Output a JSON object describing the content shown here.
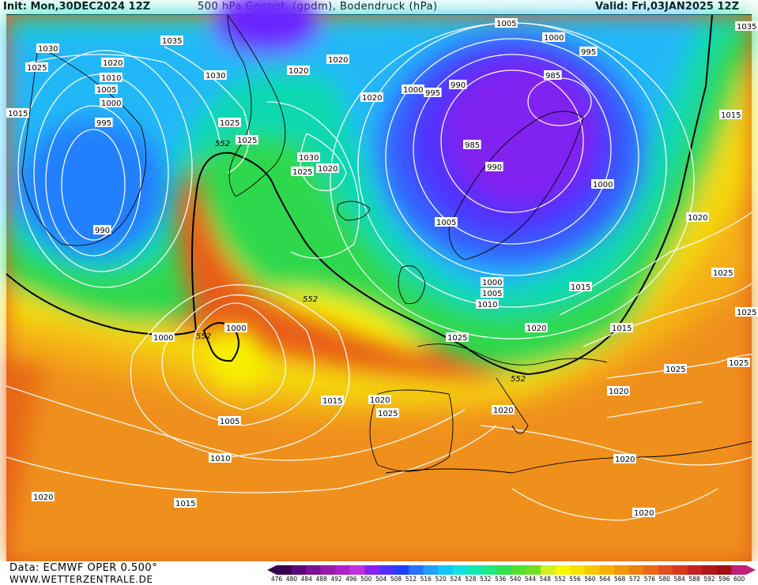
{
  "header": {
    "init": "Init: Mon,30DEC2024 12Z",
    "title": "500 hPa Geopot. (gpdm), Bodendruck (hPa)",
    "valid": "Valid: Fri,03JAN2025 12Z"
  },
  "footer": {
    "source": "Data: ECMWF OPER 0.500°",
    "site": "WWW.WETTERZENTRALE.DE"
  },
  "scale": {
    "values": [
      "476",
      "480",
      "484",
      "488",
      "492",
      "496",
      "500",
      "504",
      "508",
      "512",
      "516",
      "520",
      "524",
      "528",
      "532",
      "536",
      "540",
      "544",
      "548",
      "552",
      "556",
      "560",
      "564",
      "568",
      "572",
      "576",
      "580",
      "584",
      "588",
      "592",
      "596",
      "600"
    ],
    "colors": [
      "#3a0050",
      "#5a0a7a",
      "#7a1296",
      "#9a1aae",
      "#b020c8",
      "#c030e0",
      "#8a20f0",
      "#5030ff",
      "#2040ff",
      "#2870ff",
      "#20a0ff",
      "#10c8f8",
      "#10e0e0",
      "#10e8b0",
      "#20e880",
      "#30e050",
      "#50e030",
      "#70e020",
      "#d0f020",
      "#f8f800",
      "#f8e000",
      "#f8c800",
      "#f8b000",
      "#f09808",
      "#f08010",
      "#e86818",
      "#e05020",
      "#d83820",
      "#c82020",
      "#b01818",
      "#a01010",
      "#c0207a"
    ]
  },
  "isobars": [
    {
      "text": "1035",
      "pos": "nw"
    },
    {
      "text": "1030",
      "pos": "nw"
    },
    {
      "text": "1025",
      "pos": "nw"
    },
    {
      "text": "1020",
      "pos": "nw"
    },
    {
      "text": "1015",
      "pos": "w"
    },
    {
      "text": "1010",
      "pos": "nw"
    },
    {
      "text": "1005",
      "pos": "nw"
    },
    {
      "text": "1000",
      "pos": "nw"
    },
    {
      "text": "995",
      "pos": "nw"
    },
    {
      "text": "990",
      "pos": "w"
    },
    {
      "text": "1030",
      "pos": "n"
    },
    {
      "text": "1020",
      "pos": "n"
    },
    {
      "text": "1020",
      "pos": "n"
    },
    {
      "text": "1025",
      "pos": "n"
    },
    {
      "text": "1025",
      "pos": "n"
    },
    {
      "text": "1030",
      "pos": "c"
    },
    {
      "text": "1025",
      "pos": "c"
    },
    {
      "text": "1020",
      "pos": "c"
    },
    {
      "text": "1020",
      "pos": "c"
    },
    {
      "text": "1005",
      "pos": "top"
    },
    {
      "text": "1000",
      "pos": "top"
    },
    {
      "text": "995",
      "pos": "top"
    },
    {
      "text": "1000",
      "pos": "top"
    },
    {
      "text": "995",
      "pos": "top"
    },
    {
      "text": "990",
      "pos": "top"
    },
    {
      "text": "985",
      "pos": "top"
    },
    {
      "text": "985",
      "pos": "top"
    },
    {
      "text": "990",
      "pos": "top"
    },
    {
      "text": "1000",
      "pos": "e"
    },
    {
      "text": "1005",
      "pos": "c"
    },
    {
      "text": "1000",
      "pos": "c"
    },
    {
      "text": "1005",
      "pos": "c"
    },
    {
      "text": "1010",
      "pos": "c"
    },
    {
      "text": "1015",
      "pos": "c"
    },
    {
      "text": "1020",
      "pos": "c"
    },
    {
      "text": "1025",
      "pos": "c"
    },
    {
      "text": "1015",
      "pos": "e"
    },
    {
      "text": "1020",
      "pos": "e"
    },
    {
      "text": "1025",
      "pos": "e"
    },
    {
      "text": "1025",
      "pos": "e"
    },
    {
      "text": "1020",
      "pos": "e"
    },
    {
      "text": "1025",
      "pos": "e"
    },
    {
      "text": "1035",
      "pos": "e"
    },
    {
      "text": "1000",
      "pos": "w"
    },
    {
      "text": "1000",
      "pos": "w"
    },
    {
      "text": "1005",
      "pos": "sw"
    },
    {
      "text": "1010",
      "pos": "sw"
    },
    {
      "text": "1015",
      "pos": "sw"
    },
    {
      "text": "1020",
      "pos": "sw"
    },
    {
      "text": "1015",
      "pos": "c"
    },
    {
      "text": "1020",
      "pos": "c"
    },
    {
      "text": "1025",
      "pos": "c"
    },
    {
      "text": "1020",
      "pos": "c"
    },
    {
      "text": "1020",
      "pos": "c"
    },
    {
      "text": "1020",
      "pos": "se"
    },
    {
      "text": "1015",
      "pos": "se"
    },
    {
      "text": "1025",
      "pos": "c"
    }
  ],
  "contours552": [
    "552",
    "552",
    "552",
    "552"
  ]
}
